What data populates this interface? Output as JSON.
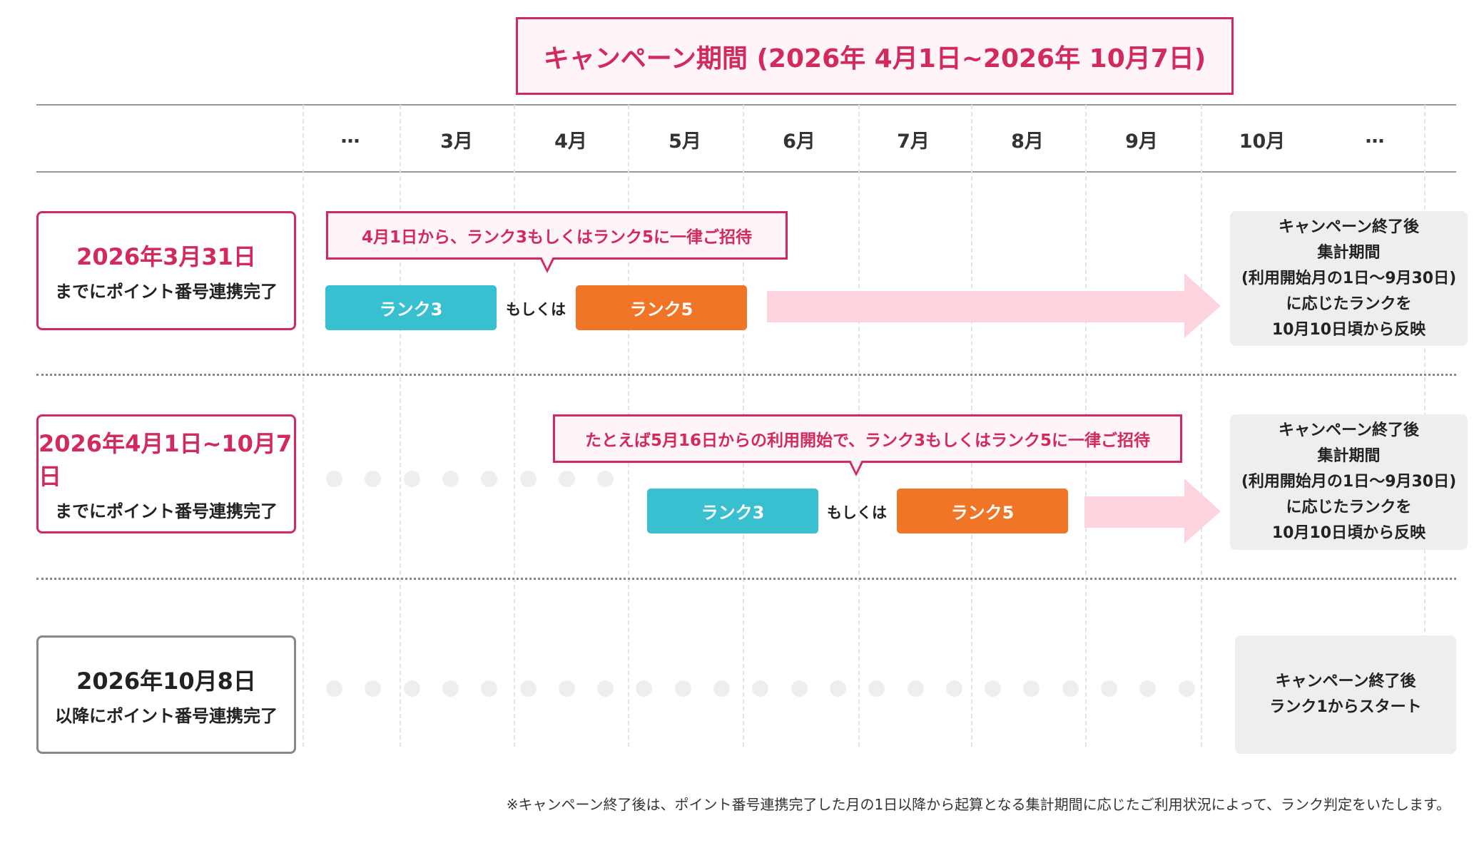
{
  "title": "キャンペーン期間 (2026年 4月1日~2026年 10月7日)",
  "months": [
    "…",
    "3月",
    "4月",
    "5月",
    "6月",
    "7月",
    "8月",
    "9月",
    "10月",
    "…"
  ],
  "rows": [
    {
      "date": "2026年3月31日",
      "sub": "までにポイント番号連携完了",
      "callout": "4月1日から、ランク3もしくはランク5に一律ご招待",
      "rank_a": "ランク3",
      "or": "もしくは",
      "rank_b": "ランク5",
      "result": [
        "キャンペーン終了後",
        "集計期間",
        "(利用開始月の1日〜9月30日)",
        "に応じたランクを",
        "10月10日頃から反映"
      ]
    },
    {
      "date": "2026年4月1日~10月7日",
      "sub": "までにポイント番号連携完了",
      "callout": "たとえば5月16日からの利用開始で、ランク3もしくはランク5に一律ご招待",
      "rank_a": "ランク3",
      "or": "もしくは",
      "rank_b": "ランク5",
      "result": [
        "キャンペーン終了後",
        "集計期間",
        "(利用開始月の1日〜9月30日)",
        "に応じたランクを",
        "10月10日頃から反映"
      ]
    },
    {
      "date": "2026年10月8日",
      "sub": "以降にポイント番号連携完了",
      "result": [
        "キャンペーン終了後",
        "ランク1からスタート"
      ]
    }
  ],
  "footnote": "※キャンペーン終了後は、ポイント番号連携完了した月の1日以降から起算となる集計期間に応じたご利用状況によって、ランク判定をいたします。",
  "colors": {
    "accent": "#d22a5d",
    "rank3": "#38c0d0",
    "rank5": "#f07527",
    "arrow": "#fdd3de",
    "result_bg": "#eeeeee"
  }
}
